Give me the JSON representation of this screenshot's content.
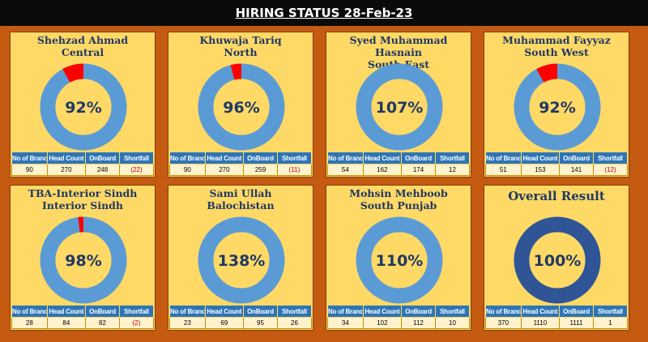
{
  "page_title": "HIRING STATUS 28-Feb-23",
  "colors": {
    "ring": "#5b9bd5",
    "ring_dark": "#2f5597",
    "shortfall": "#ff0000",
    "card": "#ffd966",
    "frame": "#c55a11"
  },
  "table_headers": [
    "No of Branch",
    "Head Count",
    "OnBoard",
    "Shortfall"
  ],
  "chart_data": [
    {
      "type": "pie",
      "title_line1": "Shehzad Ahmad",
      "title_line2": "Central",
      "percent_label": "92%",
      "onboard_ratio": 0.92,
      "stats": [
        "90",
        "270",
        "248",
        "(22)"
      ],
      "shortfall_negative": true
    },
    {
      "type": "pie",
      "title_line1": "Khuwaja Tariq",
      "title_line2": "North",
      "percent_label": "96%",
      "onboard_ratio": 0.96,
      "stats": [
        "90",
        "270",
        "259",
        "(11)"
      ],
      "shortfall_negative": true
    },
    {
      "type": "pie",
      "title_line1": "Syed Muhammad Hasnain",
      "title_line2": "South East",
      "percent_label": "107%",
      "onboard_ratio": 1.07,
      "stats": [
        "54",
        "162",
        "174",
        "12"
      ],
      "shortfall_negative": false
    },
    {
      "type": "pie",
      "title_line1": "Muhammad Fayyaz",
      "title_line2": "South West",
      "percent_label": "92%",
      "onboard_ratio": 0.92,
      "stats": [
        "51",
        "153",
        "141",
        "(12)"
      ],
      "shortfall_negative": true
    },
    {
      "type": "pie",
      "title_line1": "TBA-Interior Sindh",
      "title_line2": "Interior Sindh",
      "percent_label": "98%",
      "onboard_ratio": 0.98,
      "stats": [
        "28",
        "84",
        "82",
        "(2)"
      ],
      "shortfall_negative": true
    },
    {
      "type": "pie",
      "title_line1": "Sami Ullah",
      "title_line2": "Balochistan",
      "percent_label": "138%",
      "onboard_ratio": 1.38,
      "stats": [
        "23",
        "69",
        "95",
        "26"
      ],
      "shortfall_negative": false
    },
    {
      "type": "pie",
      "title_line1": "Mohsin Mehboob",
      "title_line2": "South Punjab",
      "percent_label": "110%",
      "onboard_ratio": 1.1,
      "stats": [
        "34",
        "102",
        "112",
        "10"
      ],
      "shortfall_negative": false
    },
    {
      "type": "pie",
      "title_line1": "Overall Result",
      "title_line2": "",
      "percent_label": "100%",
      "onboard_ratio": 1.0,
      "stats": [
        "370",
        "1110",
        "1111",
        "1"
      ],
      "shortfall_negative": false,
      "overall": true
    }
  ]
}
